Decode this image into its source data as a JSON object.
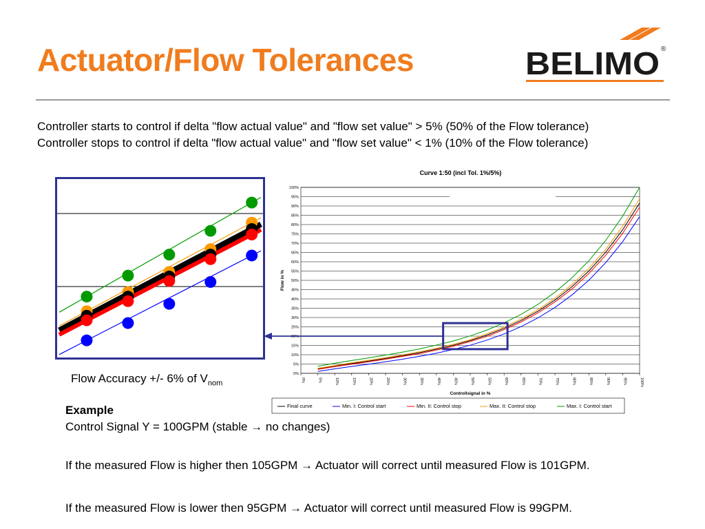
{
  "slide": {
    "title": "Actuator/Flow Tolerances",
    "logo_text": "BELIMO",
    "logo_registered": "®",
    "intro_line1": "Controller starts to control if delta \"flow actual value\" and \"flow set value\" > 5% (50% of the Flow tolerance)",
    "intro_line2": "Controller stops to control if delta \"flow actual value\" and \"flow set value\" < 1% (10% of the Flow tolerance)",
    "caption_text": "Flow Accuracy +/- 6% of V",
    "caption_sub": "nom",
    "example_heading": "Example",
    "example_signal": "Control Signal Y = 100GPM (stable → no changes)",
    "line_higher": "If the measured Flow is higher then 105GPM → Actuator will correct until measured Flow is 101GPM.",
    "line_lower": "If the measured Flow is lower then 95GPM → Actuator will correct until measured Flow is 99GPM."
  },
  "colors": {
    "title_orange": "#f07c1e",
    "zoom_border": "#2e3192",
    "final": "#000000",
    "min_start": "#0000ff",
    "min_stop": "#ff0000",
    "max_stop": "#ff9900",
    "max_start": "#009900"
  },
  "chart_data": [
    {
      "type": "line",
      "title": "Curve 1:50  (incl Tol. 1%/5%)",
      "xlabel": "Controllsignal in %",
      "ylabel": "Flow in %",
      "x_ticks": [
        "0%",
        "5%",
        "10%",
        "15%",
        "20%",
        "25%",
        "30%",
        "35%",
        "40%",
        "45%",
        "50%",
        "55%",
        "60%",
        "65%",
        "70%",
        "75%",
        "80%",
        "85%",
        "90%",
        "95%",
        "100%"
      ],
      "y_ticks": [
        "0%",
        "5%",
        "10%",
        "15%",
        "20%",
        "25%",
        "30%",
        "35%",
        "40%",
        "45%",
        "50%",
        "55%",
        "60%",
        "65%",
        "70%",
        "75%",
        "80%",
        "85%",
        "90%",
        "95%",
        "100%"
      ],
      "xlim": [
        0,
        100
      ],
      "ylim": [
        0,
        100
      ],
      "grid": true,
      "legend_position": "bottom",
      "x": [
        0,
        5,
        10,
        15,
        20,
        25,
        30,
        35,
        40,
        45,
        50,
        55,
        60,
        65,
        70,
        75,
        80,
        85,
        90,
        95,
        100
      ],
      "series": [
        {
          "name": "Final curve",
          "color_key": "final",
          "values": [
            null,
            2.4,
            3.9,
            5.3,
            6.6,
            8.0,
            9.5,
            11.1,
            13.0,
            15.1,
            17.6,
            20.6,
            24.2,
            28.4,
            33.4,
            39.4,
            46.5,
            55.0,
            65.1,
            77.2,
            91.6
          ]
        },
        {
          "name": "Min. I: Control start",
          "color_key": "min_start",
          "values": [
            null,
            1.0,
            2.4,
            3.7,
            4.9,
            6.2,
            7.6,
            9.1,
            10.8,
            12.8,
            15.1,
            17.9,
            21.2,
            25.1,
            29.8,
            35.4,
            42.1,
            50.0,
            59.5,
            70.8,
            84.2
          ]
        },
        {
          "name": "Min. II: Control stop",
          "color_key": "min_stop",
          "values": [
            null,
            2.1,
            3.6,
            4.9,
            6.2,
            7.6,
            9.1,
            10.6,
            12.5,
            14.6,
            17.1,
            19.9,
            23.5,
            27.6,
            32.5,
            38.4,
            45.3,
            53.6,
            63.5,
            75.3,
            89.3
          ]
        },
        {
          "name": "Max. II: Control stop",
          "color_key": "max_stop",
          "values": [
            null,
            2.7,
            4.2,
            5.7,
            7.0,
            8.4,
            9.9,
            11.6,
            13.5,
            15.6,
            18.1,
            21.3,
            24.9,
            29.2,
            34.3,
            40.4,
            47.7,
            56.4,
            66.7,
            79.1,
            93.9
          ]
        },
        {
          "name": "Max. I: Control start",
          "color_key": "max_start",
          "values": [
            null,
            3.8,
            5.4,
            6.9,
            8.3,
            9.8,
            11.4,
            13.1,
            15.2,
            17.4,
            20.1,
            23.3,
            27.2,
            31.7,
            37.1,
            43.6,
            51.3,
            60.5,
            71.5,
            84.5,
            100.0
          ]
        }
      ],
      "highlight_box_x": [
        42,
        61
      ],
      "highlight_box_y": [
        13,
        27
      ]
    },
    {
      "type": "line",
      "title": "",
      "xlim": [
        40,
        62
      ],
      "ylim": [
        10,
        30
      ],
      "reference_y": [
        18,
        26
      ],
      "marker_x": [
        43,
        47.5,
        52,
        56.5,
        61
      ],
      "series": [
        {
          "color_key": "max_start",
          "values": [
            16.9,
            19.2,
            21.5,
            24.1,
            27.2
          ]
        },
        {
          "color_key": "max_stop",
          "values": [
            15.3,
            17.4,
            19.6,
            22.1,
            25.0
          ]
        },
        {
          "color_key": "final",
          "values": [
            14.8,
            16.9,
            19.1,
            21.5,
            24.3
          ]
        },
        {
          "color_key": "min_stop",
          "values": [
            14.3,
            16.4,
            18.6,
            21.0,
            23.7
          ]
        },
        {
          "color_key": "min_start",
          "values": [
            12.1,
            14.0,
            16.1,
            18.5,
            21.4
          ]
        }
      ]
    }
  ]
}
